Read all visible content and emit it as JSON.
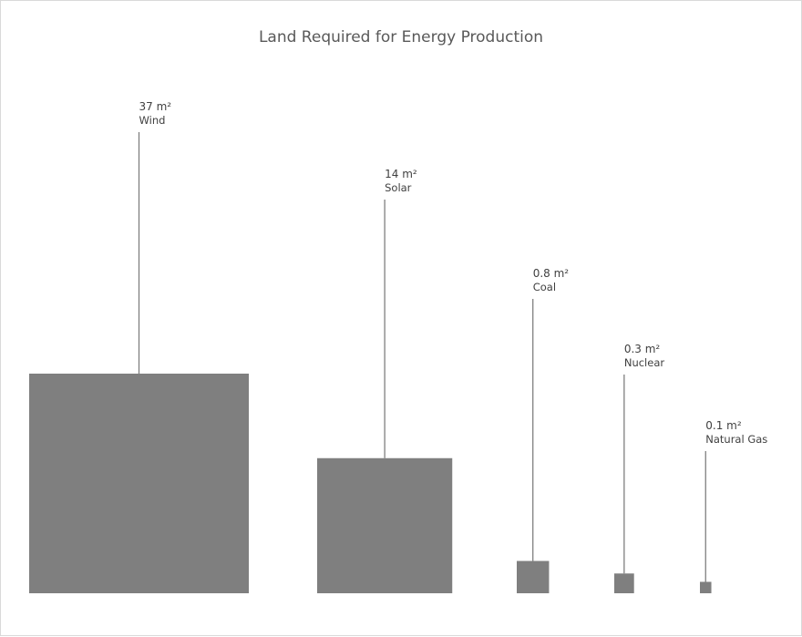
{
  "chart_data": {
    "type": "bar",
    "title": "Land Required for Energy Production",
    "unit": "m²",
    "bar_color": "#7f7f7f",
    "leader_color": "#7f7f7f",
    "categories": [
      "Wind",
      "Solar",
      "Coal",
      "Nuclear",
      "Natural Gas"
    ],
    "values": [
      37,
      14,
      0.8,
      0.3,
      0.1
    ],
    "value_labels": [
      "37 m²",
      "14 m²",
      "0.8 m²",
      "0.3 m²",
      "0.1 m²"
    ],
    "xlabel": "",
    "ylabel": "",
    "grid": false,
    "legend": "none"
  }
}
